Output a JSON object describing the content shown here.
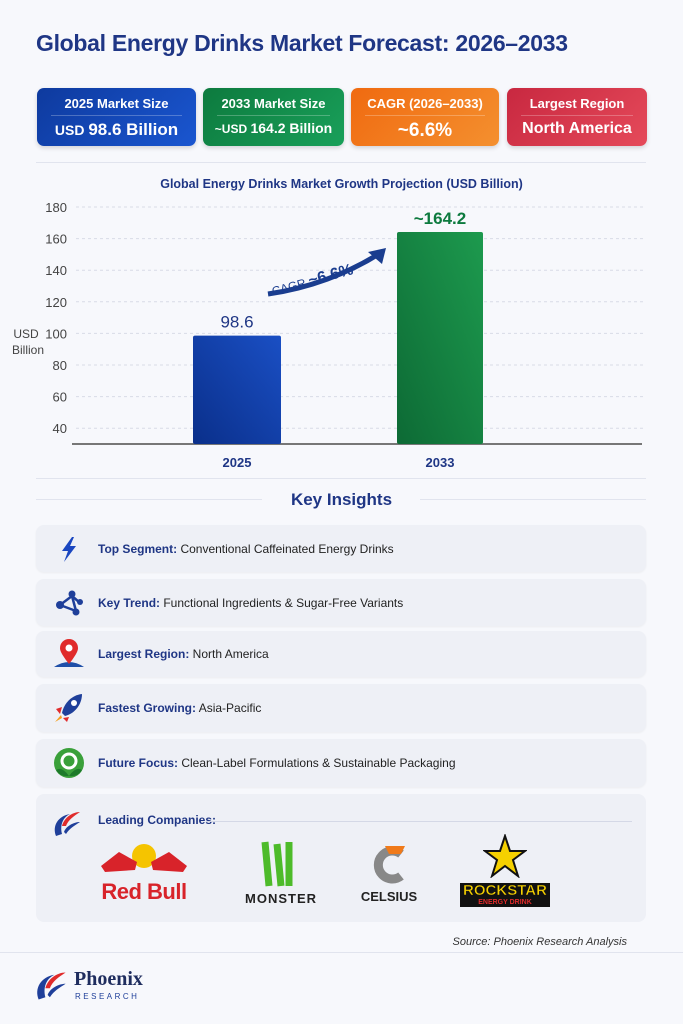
{
  "title": "Global Energy Drinks Market Forecast: 2026–2033",
  "cards": [
    {
      "label": "2025 Market Size",
      "value_prefix": "USD ",
      "value": "98.6 Billion",
      "color": "#1246b8"
    },
    {
      "label": "2033 Market Size",
      "value_prefix": "~USD ",
      "value": "164.2 Billion",
      "color": "#128a4a"
    },
    {
      "label": "CAGR (2026–2033)",
      "value_prefix": "",
      "value": "~6.6%",
      "color": "#f07a1a"
    },
    {
      "label": "Largest Region",
      "value_prefix": "",
      "value": "North America",
      "color": "#d8344a"
    }
  ],
  "chart_data": {
    "type": "bar",
    "title": "Global Energy Drinks Market Growth Projection (USD Billion)",
    "ylabel": "USD Billion",
    "categories": [
      "2025",
      "2033"
    ],
    "values": [
      98.6,
      164.2
    ],
    "data_labels": [
      "98.6",
      "~164.2"
    ],
    "yticks": [
      40,
      60,
      80,
      100,
      120,
      140,
      160,
      180
    ],
    "ylim": [
      30,
      180
    ],
    "grid": true,
    "colors": [
      "#1a4fc4",
      "#1d9a4e"
    ],
    "annotation": {
      "prefix": "CAGR ",
      "value": "~6.6%"
    }
  },
  "insights": {
    "title": "Key Insights",
    "items": [
      {
        "icon": "lightning-icon",
        "label": "Top Segment:",
        "text": " Conventional Caffeinated Energy Drinks"
      },
      {
        "icon": "network-icon",
        "label": "Key Trend:",
        "text": " Functional Ingredients & Sugar-Free Variants"
      },
      {
        "icon": "map-pin-icon",
        "label": "Largest Region:",
        "text": " North America"
      },
      {
        "icon": "rocket-icon",
        "label": "Fastest Growing:",
        "text": " Asia-Pacific"
      },
      {
        "icon": "recycle-leaf-icon",
        "label": "Future Focus:",
        "text": " Clean-Label Formulations & Sustainable Packaging"
      }
    ]
  },
  "companies": {
    "title": "Leading Companies:",
    "logos": [
      "Red Bull",
      "MONSTER",
      "CELSIUS",
      "ROCKSTAR"
    ],
    "rockstar_sub": "ENERGY DRINK"
  },
  "source": "Source: Phoenix Research Analysis",
  "footer": {
    "brand": "Phoenix",
    "sub": "RESEARCH"
  }
}
